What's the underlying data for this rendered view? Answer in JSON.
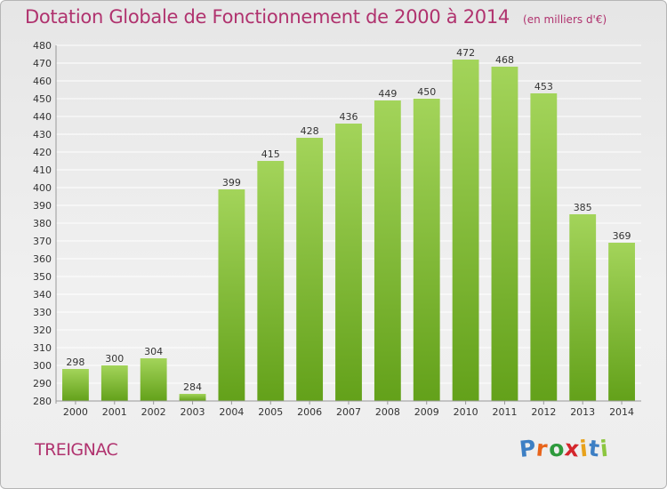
{
  "chart_title": "Dotation Globale de Fonctionnement de 2000 à 2014",
  "chart_subtitle": "(en milliers d'€)",
  "commune": "TREIGNAC",
  "logo": {
    "letters": [
      "P",
      "r",
      "o",
      "x",
      "i",
      "t",
      "i"
    ],
    "colors": [
      "#3d7fc4",
      "#e8641b",
      "#2e9a3c",
      "#d4262c",
      "#e8a21b",
      "#3d7fc4",
      "#8cc63f"
    ]
  },
  "colors": {
    "bar_light": "#a3d45a",
    "bar_dark": "#63a11a",
    "grid": "#ffffff",
    "title": "#b0326e"
  },
  "chart_data": {
    "type": "bar",
    "title": "Dotation Globale de Fonctionnement de 2000 à 2014",
    "subtitle": "(en milliers d'€)",
    "xlabel": "",
    "ylabel": "",
    "categories": [
      "2000",
      "2001",
      "2002",
      "2003",
      "2004",
      "2005",
      "2006",
      "2007",
      "2008",
      "2009",
      "2010",
      "2011",
      "2012",
      "2013",
      "2014"
    ],
    "values": [
      298,
      300,
      304,
      284,
      399,
      415,
      428,
      436,
      449,
      450,
      472,
      468,
      453,
      385,
      369
    ],
    "ylim": [
      280,
      480
    ],
    "ytick_step": 10,
    "grid": true,
    "legend": "none"
  }
}
